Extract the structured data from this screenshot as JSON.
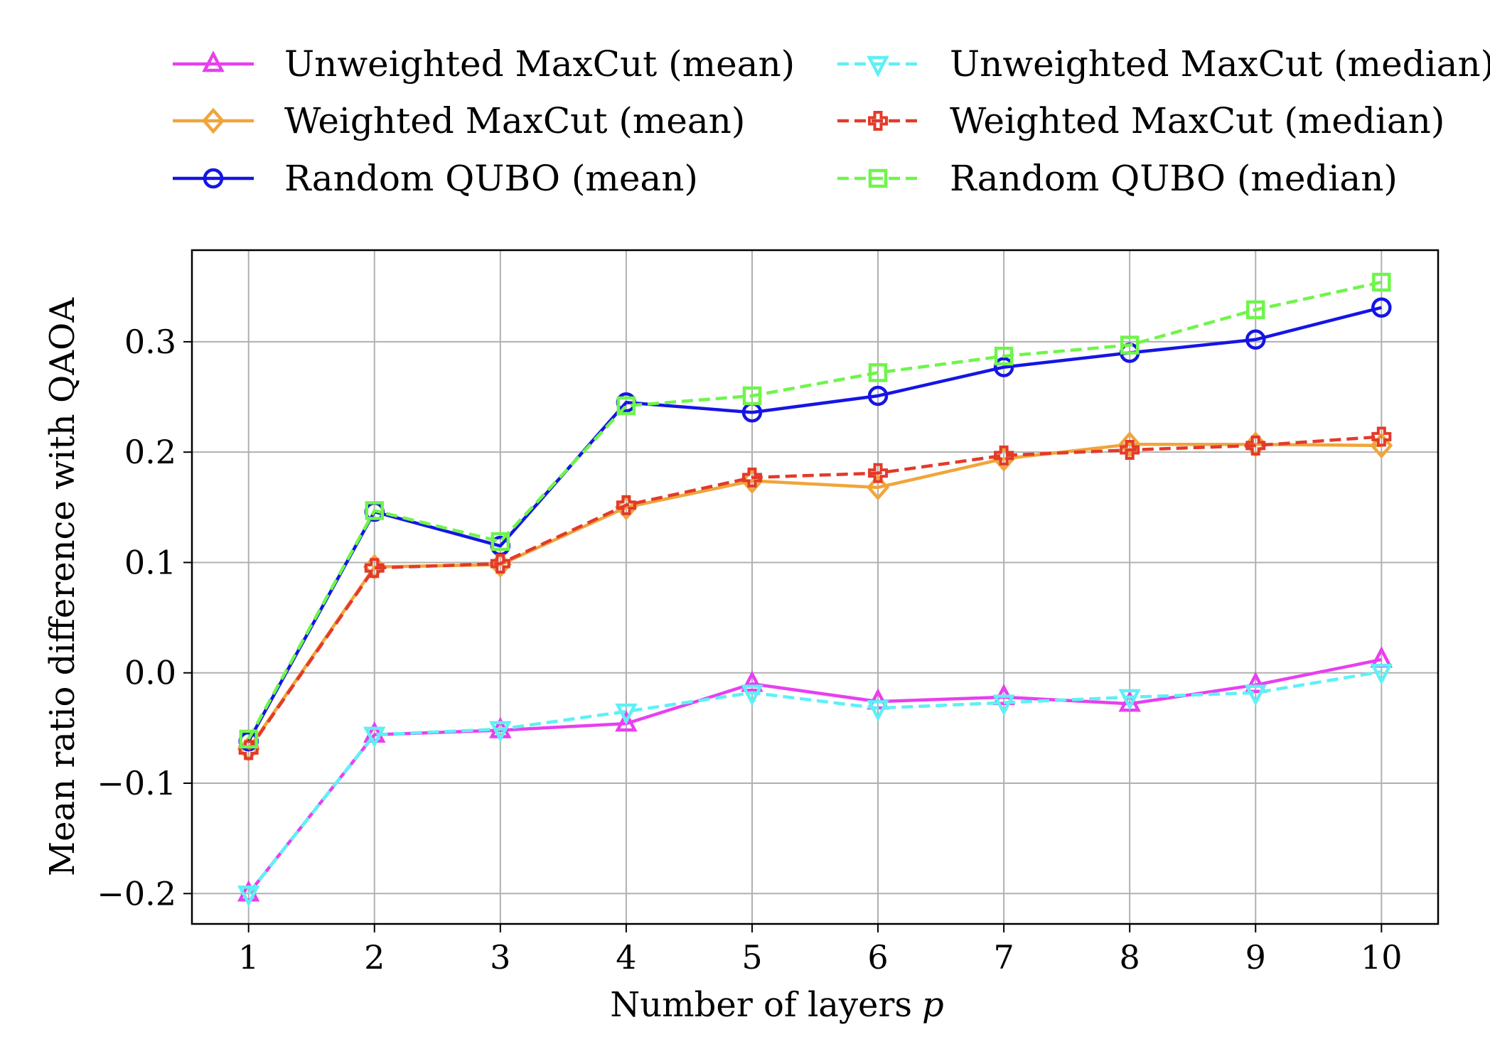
{
  "chart_data": {
    "type": "line",
    "xlabel": "Number of layers",
    "xlabel_var": "p",
    "ylabel": "Mean ratio difference with QAOA",
    "x": [
      1,
      2,
      3,
      4,
      5,
      6,
      7,
      8,
      9,
      10
    ],
    "xticks": [
      "1",
      "2",
      "3",
      "4",
      "5",
      "6",
      "7",
      "8",
      "9",
      "10"
    ],
    "yticks": [
      -0.2,
      -0.1,
      0.0,
      0.1,
      0.2,
      0.3
    ],
    "ytick_labels": [
      "−0.2",
      "−0.1",
      "0.0",
      "0.1",
      "0.2",
      "0.3"
    ],
    "xlim": [
      0.55,
      10.45
    ],
    "ylim": [
      -0.2275,
      0.383
    ],
    "grid": true,
    "legend_placement": "above",
    "series": [
      {
        "name": "Unweighted MaxCut (mean)",
        "color": "#e83ff0",
        "dashed": false,
        "marker": "triangle-up",
        "values": [
          -0.2,
          -0.056,
          -0.052,
          -0.046,
          -0.01,
          -0.026,
          -0.022,
          -0.028,
          -0.011,
          0.012
        ]
      },
      {
        "name": "Weighted MaxCut (mean)",
        "color": "#f0a53a",
        "dashed": false,
        "marker": "diamond",
        "values": [
          -0.069,
          0.096,
          0.098,
          0.15,
          0.174,
          0.168,
          0.194,
          0.207,
          0.207,
          0.206
        ]
      },
      {
        "name": "Random QUBO (mean)",
        "color": "#1515e6",
        "dashed": false,
        "marker": "circle",
        "values": [
          -0.062,
          0.146,
          0.115,
          0.245,
          0.236,
          0.251,
          0.277,
          0.29,
          0.302,
          0.331
        ]
      },
      {
        "name": "Unweighted MaxCut (median)",
        "color": "#5ef0f5",
        "dashed": true,
        "marker": "triangle-down",
        "values": [
          -0.2,
          -0.056,
          -0.051,
          -0.035,
          -0.018,
          -0.032,
          -0.027,
          -0.022,
          -0.018,
          0.001
        ]
      },
      {
        "name": "Weighted MaxCut (median)",
        "color": "#e33a2a",
        "dashed": true,
        "marker": "plus",
        "values": [
          -0.07,
          0.095,
          0.099,
          0.152,
          0.177,
          0.181,
          0.197,
          0.202,
          0.206,
          0.214
        ]
      },
      {
        "name": "Random QUBO (median)",
        "color": "#6ef54a",
        "dashed": true,
        "marker": "square",
        "values": [
          -0.06,
          0.147,
          0.119,
          0.242,
          0.251,
          0.272,
          0.287,
          0.297,
          0.329,
          0.354
        ]
      }
    ]
  }
}
